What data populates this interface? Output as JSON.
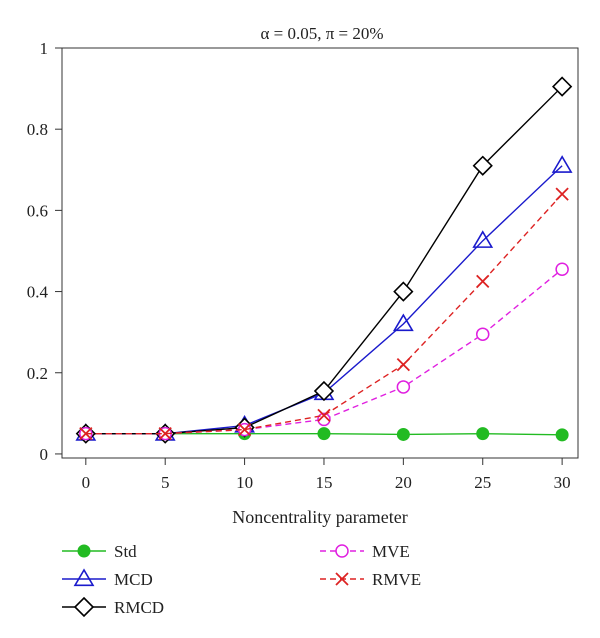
{
  "chart_data": {
    "type": "line",
    "title": "α = 0.05, π = 20%",
    "xlabel": "Noncentrality parameter",
    "ylabel": "",
    "x": [
      0,
      5,
      10,
      15,
      20,
      25,
      30
    ],
    "xlim": [
      -1.5,
      31
    ],
    "ylim": [
      -0.01,
      1.0
    ],
    "xticks": [
      "0",
      "5",
      "10",
      "15",
      "20",
      "25",
      "30"
    ],
    "yticks": [
      "0",
      "0.2",
      "0.4",
      "0.6",
      "0.8",
      "1"
    ],
    "grid": false,
    "legend_position": "bottom",
    "series": [
      {
        "name": "Std",
        "values": [
          0.05,
          0.05,
          0.05,
          0.05,
          0.048,
          0.05,
          0.047
        ],
        "color": "#22bb22",
        "dash": "solid",
        "marker": "filled-circle"
      },
      {
        "name": "MCD",
        "values": [
          0.05,
          0.05,
          0.07,
          0.15,
          0.32,
          0.525,
          0.71
        ],
        "color": "#1a1acc",
        "dash": "solid",
        "marker": "triangle"
      },
      {
        "name": "RMCD",
        "values": [
          0.05,
          0.05,
          0.065,
          0.155,
          0.4,
          0.71,
          0.905
        ],
        "color": "#000000",
        "dash": "solid",
        "marker": "diamond"
      },
      {
        "name": "MVE",
        "values": [
          0.05,
          0.05,
          0.06,
          0.085,
          0.165,
          0.295,
          0.455
        ],
        "color": "#e020e0",
        "dash": "dashed",
        "marker": "open-circle"
      },
      {
        "name": "RMVE",
        "values": [
          0.05,
          0.05,
          0.06,
          0.095,
          0.22,
          0.425,
          0.64
        ],
        "color": "#dd2222",
        "dash": "dashed",
        "marker": "x"
      }
    ]
  }
}
